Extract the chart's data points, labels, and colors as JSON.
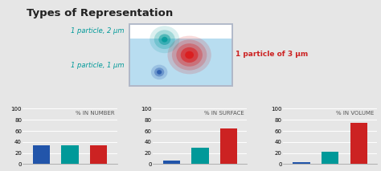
{
  "title": "Types of Representation",
  "title_fontsize": 9.5,
  "bg_color": "#e6e6e6",
  "charts": [
    {
      "label": "% IN NUMBER",
      "values": [
        33.3,
        33.3,
        33.3
      ]
    },
    {
      "label": "% IN SURFACE",
      "values": [
        7,
        29,
        64
      ]
    },
    {
      "label": "% IN VOLUME",
      "values": [
        3,
        22,
        75
      ]
    }
  ],
  "bar_colors": [
    "#2255aa",
    "#009999",
    "#cc2222"
  ],
  "ylim": [
    0,
    100
  ],
  "yticks": [
    0,
    20,
    40,
    60,
    80,
    100
  ],
  "annotation_teal": "1 particle, 2 μm",
  "annotation_blue": "1 particle, 1 μm",
  "annotation_red": "1 particle of 3 μm",
  "annotation_teal_color": "#009999",
  "annotation_blue_color": "#009999",
  "annotation_red_color": "#cc2222",
  "chart_label_fontsize": 5,
  "annot_fontsize": 6,
  "tick_fontsize": 5
}
